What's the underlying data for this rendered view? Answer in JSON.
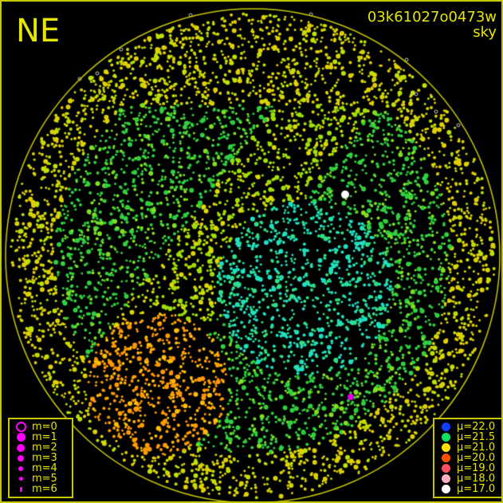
{
  "header": {
    "direction": "NE",
    "frame_id": "03k61027o0473w",
    "mode": "sky"
  },
  "colors": {
    "frame": "#c8c800",
    "text": "#e6e600",
    "magnitude_symbol": "#ff00ff"
  },
  "magnitude_legend": [
    {
      "label": "m=0",
      "style": "ring"
    },
    {
      "label": "m=1"
    },
    {
      "label": "m=2"
    },
    {
      "label": "m=3"
    },
    {
      "label": "m=4"
    },
    {
      "label": "m=5"
    },
    {
      "label": "m=6"
    }
  ],
  "brightness_legend": [
    {
      "label": "μ=22.0",
      "color": "#1040ff"
    },
    {
      "label": "μ=21.5",
      "color": "#10e060"
    },
    {
      "label": "μ=21.0",
      "color": "#ffe000"
    },
    {
      "label": "μ=20.0",
      "color": "#ff5000"
    },
    {
      "label": "μ=19.0",
      "color": "#ff5060"
    },
    {
      "label": "μ=18.0",
      "color": "#ffb0c0"
    },
    {
      "label": "μ=17.0",
      "color": "#ffffff"
    }
  ]
}
